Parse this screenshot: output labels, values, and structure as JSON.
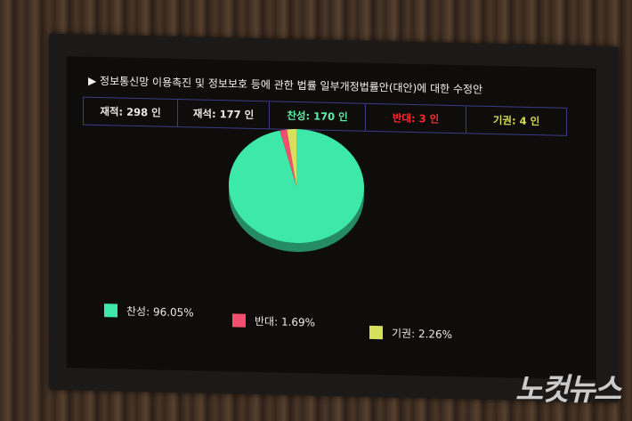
{
  "title": "▶ 정보통신망 이용촉진 및 정보보호 등에 관한 법률 일부개정법률안(대안)에 대한 수정안",
  "stats": [
    {
      "label": "재적: 298 인",
      "color": "#e8e8e8"
    },
    {
      "label": "재석: 177 인",
      "color": "#e8e8e8"
    },
    {
      "label": "찬성: 170 인",
      "color": "#5ef0a6"
    },
    {
      "label": "반대:   3 인",
      "color": "#ff2a2a"
    },
    {
      "label": "기권:   4 인",
      "color": "#d8dc5a"
    }
  ],
  "chart_data": {
    "type": "pie",
    "categories": [
      "찬성",
      "반대",
      "기권"
    ],
    "values": [
      96.05,
      1.69,
      2.26
    ],
    "colors": [
      "#3de8a8",
      "#f0506e",
      "#d6e05a"
    ],
    "legend": [
      "찬성: 96.05%",
      "반대: 1.69%",
      "기권: 2.26%"
    ],
    "legend_placement": "bottom"
  },
  "watermark": "노컷뉴스"
}
